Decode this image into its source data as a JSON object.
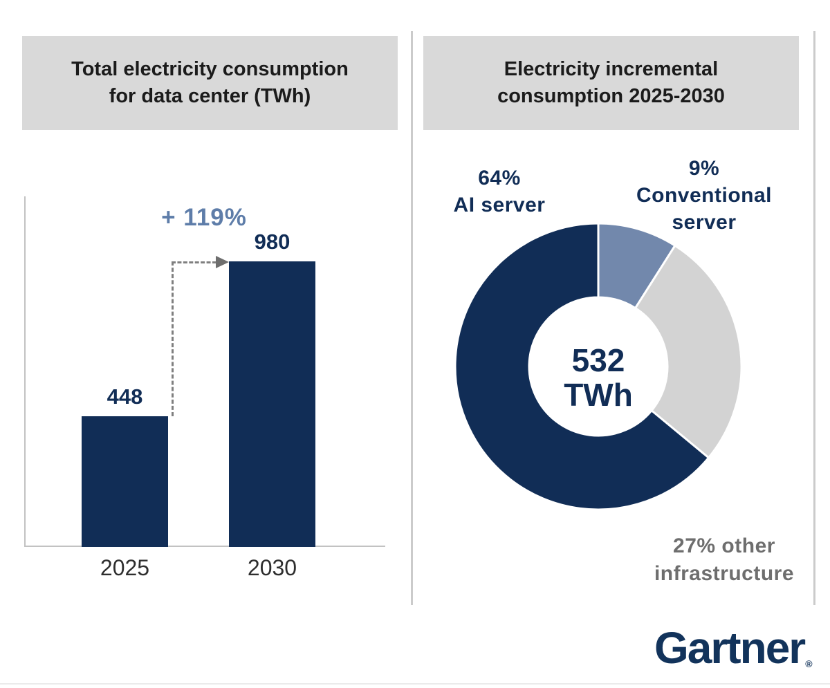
{
  "left_panel": {
    "title_line1": "Total electricity consumption",
    "title_line2": "for data center (TWh)",
    "annotation": "+ 119%",
    "bars": [
      {
        "year": "2025",
        "label": "448",
        "value": 448
      },
      {
        "year": "2030",
        "label": "980",
        "value": 980
      }
    ]
  },
  "right_panel": {
    "title_line1": "Electricity incremental",
    "title_line2": "consumption 2025-2030",
    "center_line1": "532",
    "center_line2": "TWh",
    "label_ai": {
      "line1": "64%",
      "line2": "AI server"
    },
    "label_conventional": {
      "line1": "9%",
      "line2": "Conventional",
      "line3": "server"
    },
    "label_other": {
      "line1": "27% other",
      "line2": "infrastructure"
    }
  },
  "footer": {
    "brand": "Gartner",
    "reg": "®"
  },
  "colors": {
    "navy": "#112D56",
    "slate": "#7288AC",
    "annotation_slate": "#5E7DA9",
    "light_gray": "#D3D3D3",
    "header_bg": "#D9D9D9",
    "gray_text": "#6E6E6E"
  },
  "chart_data": [
    {
      "type": "bar",
      "title": "Total electricity consumption for data center (TWh)",
      "categories": [
        "2025",
        "2030"
      ],
      "values": [
        448,
        980
      ],
      "data_labels": [
        "448",
        "980"
      ],
      "annotation": "+ 119%",
      "xlabel": "",
      "ylabel": "TWh",
      "ylim": [
        0,
        1200
      ],
      "grid": false,
      "bar_color": "#112D56"
    },
    {
      "type": "pie",
      "subtype": "donut",
      "title": "Electricity incremental consumption 2025-2030",
      "center_label": "532 TWh",
      "start_angle_deg": 0,
      "direction": "clockwise",
      "slices": [
        {
          "label": "Conventional server",
          "pct": 9,
          "color": "#7288AC"
        },
        {
          "label": "Other infrastructure",
          "pct": 27,
          "color": "#D3D3D3"
        },
        {
          "label": "AI server",
          "pct": 64,
          "color": "#112D56"
        }
      ]
    }
  ]
}
